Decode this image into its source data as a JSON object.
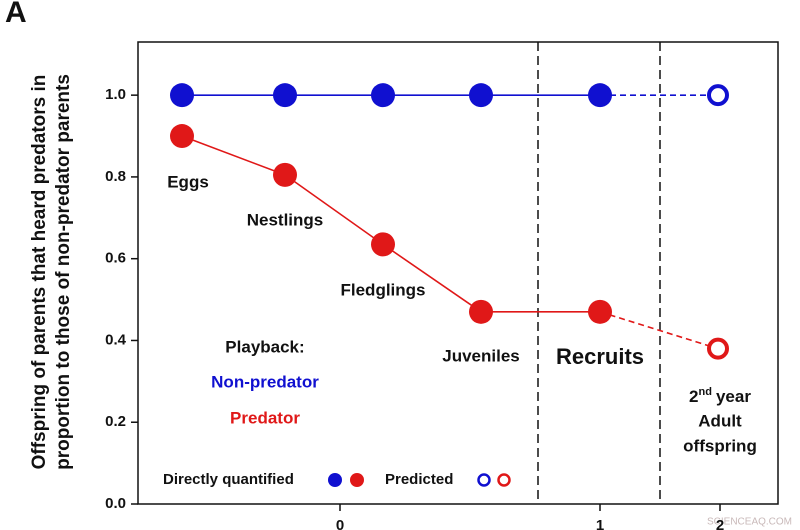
{
  "chart_data": {
    "type": "line",
    "panel_letter": "A",
    "y_label_lines": [
      "Offspring of parents that heard predators in",
      "proportion to those of non-predator parents"
    ],
    "categories": [
      "Eggs",
      "Nestlings",
      "Fledglings",
      "Juveniles",
      "Recruits",
      null
    ],
    "last_label": {
      "base": "2",
      "sup": "nd",
      "rest": "year",
      "line2": "Adult",
      "line3": "offspring"
    },
    "predicted": [
      false,
      false,
      false,
      false,
      false,
      true
    ],
    "series": [
      {
        "name": "Non-predator",
        "color": "#1010d0",
        "values": [
          1.0,
          1.0,
          1.0,
          1.0,
          1.0,
          1.0
        ]
      },
      {
        "name": "Predator",
        "color": "#e01818",
        "values": [
          0.9,
          0.805,
          0.635,
          0.47,
          0.47,
          0.38
        ]
      }
    ],
    "ylim": [
      0,
      1.13
    ],
    "yticks": [
      {
        "value": 0,
        "label": "0.0"
      },
      {
        "value": 0.2,
        "label": "0.2"
      },
      {
        "value": 0.4,
        "label": "0.4"
      },
      {
        "value": 0.6,
        "label": "0.6"
      },
      {
        "value": 0.8,
        "label": "0.8"
      },
      {
        "value": 1,
        "label": "1.0"
      }
    ],
    "xticks": [
      0,
      1,
      2
    ],
    "legend_title": "Playback:",
    "legend_quantified": "Directly quantified",
    "legend_predicted": "Predicted",
    "watermark": "SCIENCEAQ.COM"
  }
}
